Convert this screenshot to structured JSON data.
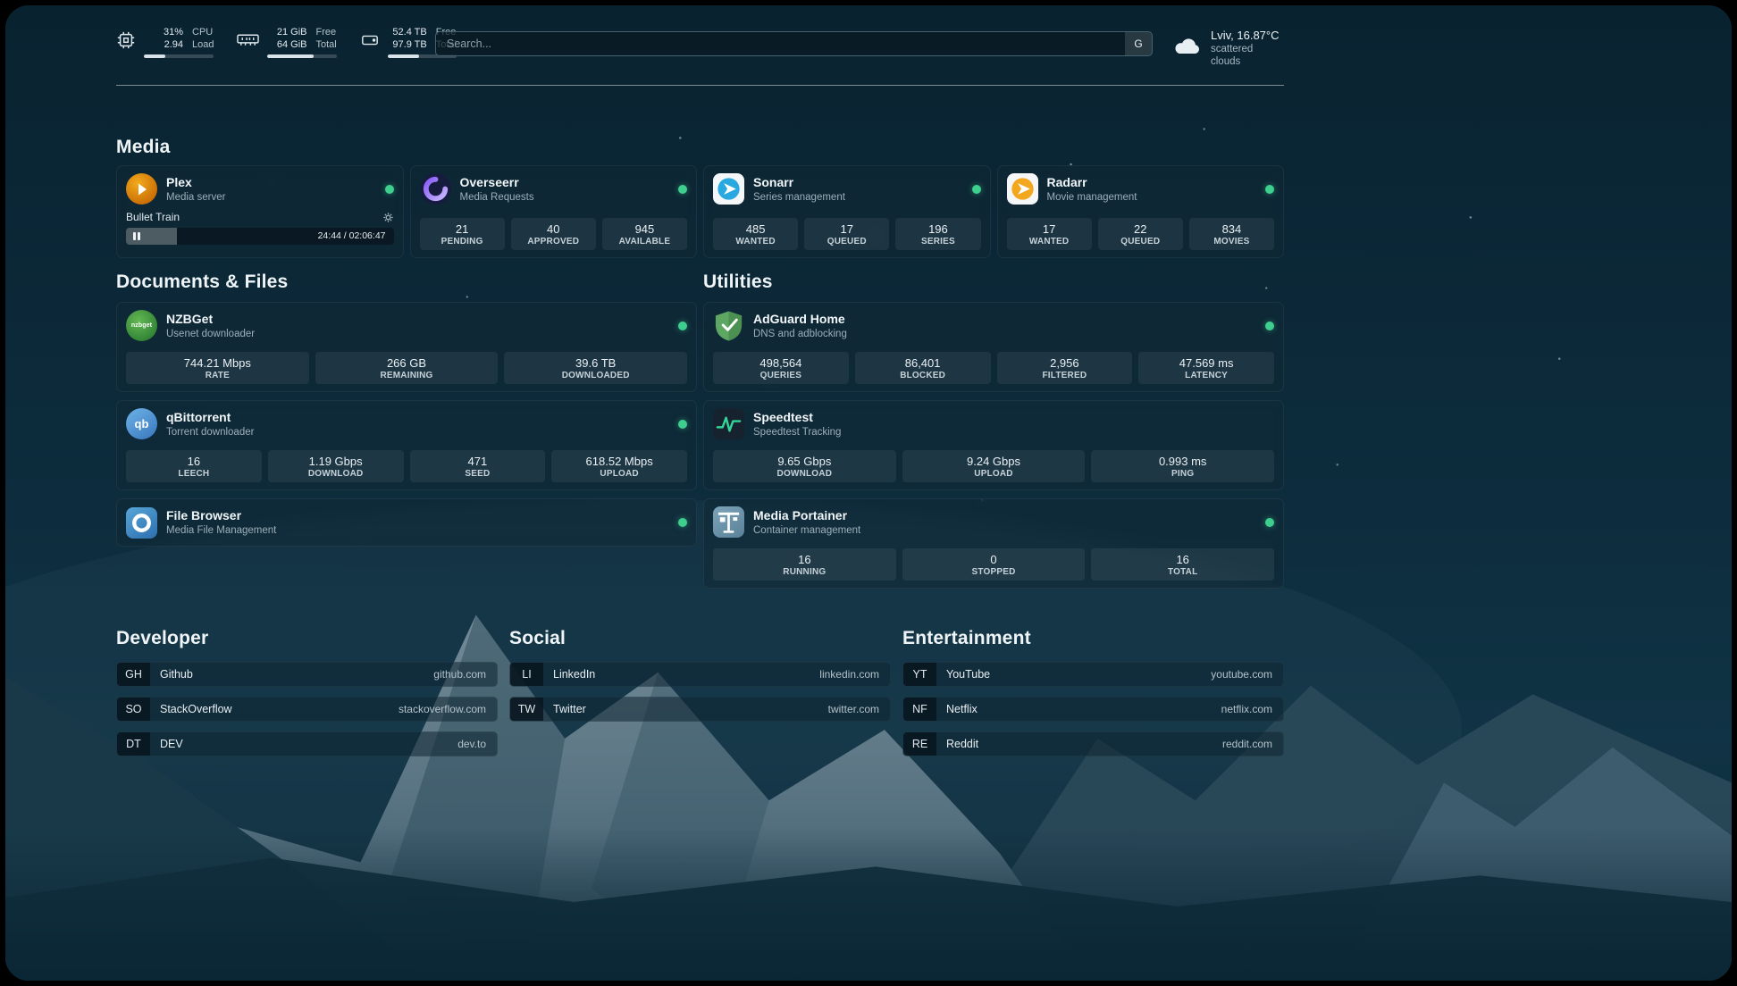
{
  "topbar": {
    "cpu": {
      "value1": "31%",
      "label1": "CPU",
      "value2": "2.94",
      "label2": "Load",
      "bar_percent": 31
    },
    "memory": {
      "value1": "21 GiB",
      "label1": "Free",
      "value2": "64 GiB",
      "label2": "Total",
      "bar_percent": 67
    },
    "disk": {
      "value1": "52.4 TB",
      "label1": "Free",
      "value2": "97.9 TB",
      "label2": "Total",
      "bar_percent": 46
    },
    "search": {
      "placeholder": "Search...",
      "provider": "G"
    },
    "weather": {
      "location": "Lviv, 16.87°C",
      "condition": "scattered clouds"
    }
  },
  "media": {
    "title": "Media",
    "plex": {
      "name": "Plex",
      "subtitle": "Media server",
      "now_playing": "Bullet Train",
      "time": "24:44 / 02:06:47",
      "progress_percent": 19
    },
    "overseerr": {
      "name": "Overseerr",
      "subtitle": "Media Requests",
      "stats": [
        {
          "value": "21",
          "label": "PENDING"
        },
        {
          "value": "40",
          "label": "APPROVED"
        },
        {
          "value": "945",
          "label": "AVAILABLE"
        }
      ]
    },
    "sonarr": {
      "name": "Sonarr",
      "subtitle": "Series management",
      "stats": [
        {
          "value": "485",
          "label": "WANTED"
        },
        {
          "value": "17",
          "label": "QUEUED"
        },
        {
          "value": "196",
          "label": "SERIES"
        }
      ]
    },
    "radarr": {
      "name": "Radarr",
      "subtitle": "Movie management",
      "stats": [
        {
          "value": "17",
          "label": "WANTED"
        },
        {
          "value": "22",
          "label": "QUEUED"
        },
        {
          "value": "834",
          "label": "MOVIES"
        }
      ]
    }
  },
  "documents": {
    "title": "Documents & Files",
    "nzbget": {
      "name": "NZBGet",
      "subtitle": "Usenet downloader",
      "icon_text": "nzbget",
      "stats": [
        {
          "value": "744.21 Mbps",
          "label": "RATE"
        },
        {
          "value": "266 GB",
          "label": "REMAINING"
        },
        {
          "value": "39.6 TB",
          "label": "DOWNLOADED"
        }
      ]
    },
    "qbittorrent": {
      "name": "qBittorrent",
      "subtitle": "Torrent downloader",
      "icon_text": "qb",
      "stats": [
        {
          "value": "16",
          "label": "LEECH"
        },
        {
          "value": "1.19 Gbps",
          "label": "DOWNLOAD"
        },
        {
          "value": "471",
          "label": "SEED"
        },
        {
          "value": "618.52 Mbps",
          "label": "UPLOAD"
        }
      ]
    },
    "filebrowser": {
      "name": "File Browser",
      "subtitle": "Media File Management"
    }
  },
  "utilities": {
    "title": "Utilities",
    "adguard": {
      "name": "AdGuard Home",
      "subtitle": "DNS and adblocking",
      "stats": [
        {
          "value": "498,564",
          "label": "QUERIES"
        },
        {
          "value": "86,401",
          "label": "BLOCKED"
        },
        {
          "value": "2,956",
          "label": "FILTERED"
        },
        {
          "value": "47.569 ms",
          "label": "LATENCY"
        }
      ]
    },
    "speedtest": {
      "name": "Speedtest",
      "subtitle": "Speedtest Tracking",
      "stats": [
        {
          "value": "9.65 Gbps",
          "label": "DOWNLOAD"
        },
        {
          "value": "9.24 Gbps",
          "label": "UPLOAD"
        },
        {
          "value": "0.993 ms",
          "label": "PING"
        }
      ]
    },
    "portainer": {
      "name": "Media Portainer",
      "subtitle": "Container management",
      "stats": [
        {
          "value": "16",
          "label": "RUNNING"
        },
        {
          "value": "0",
          "label": "STOPPED"
        },
        {
          "value": "16",
          "label": "TOTAL"
        }
      ]
    }
  },
  "bookmarks": {
    "developer": {
      "title": "Developer",
      "items": [
        {
          "abbr": "GH",
          "name": "Github",
          "url": "github.com"
        },
        {
          "abbr": "SO",
          "name": "StackOverflow",
          "url": "stackoverflow.com"
        },
        {
          "abbr": "DT",
          "name": "DEV",
          "url": "dev.to"
        }
      ]
    },
    "social": {
      "title": "Social",
      "items": [
        {
          "abbr": "LI",
          "name": "LinkedIn",
          "url": "linkedin.com"
        },
        {
          "abbr": "TW",
          "name": "Twitter",
          "url": "twitter.com"
        }
      ]
    },
    "entertainment": {
      "title": "Entertainment",
      "items": [
        {
          "abbr": "YT",
          "name": "YouTube",
          "url": "youtube.com"
        },
        {
          "abbr": "NF",
          "name": "Netflix",
          "url": "netflix.com"
        },
        {
          "abbr": "RE",
          "name": "Reddit",
          "url": "reddit.com"
        }
      ]
    }
  }
}
